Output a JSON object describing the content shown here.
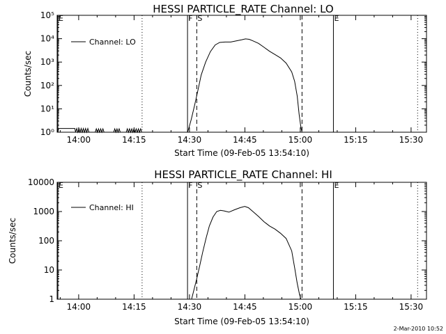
{
  "footer": {
    "timestamp": "2-Mar-2010 10:52"
  },
  "chart_data": [
    {
      "type": "line",
      "title": "HESSI PARTICLE_RATE Channel: LO",
      "xlabel": "Start Time (09-Feb-05 13:54:10)",
      "ylabel": "Counts/sec",
      "x_unit": "minutes since 13:54:10",
      "xlim": [
        0,
        100
      ],
      "ylim": [
        1,
        100000
      ],
      "yscale": "log",
      "x_ticks": [
        {
          "x": 5.83,
          "label": "14:00"
        },
        {
          "x": 20.83,
          "label": "14:15"
        },
        {
          "x": 35.83,
          "label": "14:30"
        },
        {
          "x": 50.83,
          "label": "14:45"
        },
        {
          "x": 65.83,
          "label": "15:00"
        },
        {
          "x": 80.83,
          "label": "15:15"
        },
        {
          "x": 95.83,
          "label": "15:30"
        }
      ],
      "y_ticks": [
        {
          "y": 1,
          "label": "10⁰"
        },
        {
          "y": 10,
          "label": "10¹"
        },
        {
          "y": 100,
          "label": "10²"
        },
        {
          "y": 1000,
          "label": "10³"
        },
        {
          "y": 10000,
          "label": "10⁴"
        },
        {
          "y": 100000,
          "label": "10⁵"
        }
      ],
      "legend": {
        "label": "Channel: LO",
        "position": "top-left"
      },
      "markers": [
        {
          "x": 0.2,
          "style": "solid",
          "label": "E"
        },
        {
          "x": 23.0,
          "style": "dotted",
          "label": ""
        },
        {
          "x": 35.3,
          "style": "solid",
          "label": "F"
        },
        {
          "x": 37.8,
          "style": "dashed",
          "label": "S"
        },
        {
          "x": 66.3,
          "style": "dashed",
          "label": ""
        },
        {
          "x": 74.8,
          "style": "solid",
          "label": "E"
        },
        {
          "x": 97.6,
          "style": "dotted",
          "label": ""
        }
      ],
      "series": [
        {
          "name": "Channel: LO",
          "x": [
            0,
            0.2,
            0.4,
            4.8,
            5.0,
            5.3,
            5.6,
            5.9,
            6.2,
            6.5,
            6.8,
            7.1,
            7.4,
            7.7,
            8.0,
            8.3,
            8.6,
            10.3,
            10.6,
            10.9,
            11.2,
            11.5,
            11.8,
            12.1,
            12.4,
            12.7,
            15.3,
            15.6,
            15.9,
            16.2,
            16.5,
            16.8,
            17.1,
            17.4,
            18.7,
            19.0,
            19.3,
            19.6,
            19.9,
            20.2,
            20.5,
            20.8,
            21.1,
            21.4,
            21.7,
            22.0,
            22.3,
            22.6,
            22.9,
            35.3,
            35.6,
            36.3,
            37.2,
            38.1,
            39.0,
            40.2,
            41.5,
            42.8,
            44.0,
            45.5,
            47.0,
            48.5,
            50.0,
            51.0,
            52.0,
            53.0,
            54.5,
            56.0,
            57.5,
            59.0,
            60.5,
            62.0,
            63.5,
            64.3,
            65.0,
            65.5,
            66.0,
            66.3,
            100
          ],
          "y": [
            1,
            1,
            1.45,
            1.45,
            1,
            1.45,
            1,
            1.45,
            1,
            1.45,
            1,
            1.45,
            1,
            1.45,
            1,
            1.45,
            1,
            1,
            1.4,
            1,
            1.4,
            1,
            1.4,
            1,
            1.4,
            1,
            1,
            1.4,
            1,
            1.4,
            1,
            1.4,
            1,
            1,
            1,
            1.4,
            1,
            1.4,
            1,
            1.4,
            1,
            1.4,
            1,
            1.4,
            1,
            1.4,
            1,
            1.4,
            1,
            1,
            1.4,
            3.5,
            14,
            60,
            280,
            1000,
            2800,
            5400,
            6900,
            7200,
            7200,
            8100,
            9000,
            9800,
            9400,
            8100,
            6300,
            4300,
            2900,
            2100,
            1500,
            900,
            380,
            150,
            35,
            6,
            1.6,
            1,
            1
          ]
        }
      ]
    },
    {
      "type": "line",
      "title": "HESSI PARTICLE_RATE Channel: HI",
      "xlabel": "Start Time (09-Feb-05 13:54:10)",
      "ylabel": "Counts/sec",
      "x_unit": "minutes since 13:54:10",
      "xlim": [
        0,
        100
      ],
      "ylim": [
        1,
        10000
      ],
      "yscale": "log",
      "x_ticks": [
        {
          "x": 5.83,
          "label": "14:00"
        },
        {
          "x": 20.83,
          "label": "14:15"
        },
        {
          "x": 35.83,
          "label": "14:30"
        },
        {
          "x": 50.83,
          "label": "14:45"
        },
        {
          "x": 65.83,
          "label": "15:00"
        },
        {
          "x": 80.83,
          "label": "15:15"
        },
        {
          "x": 95.83,
          "label": "15:30"
        }
      ],
      "y_ticks": [
        {
          "y": 1,
          "label": "1"
        },
        {
          "y": 10,
          "label": "10"
        },
        {
          "y": 100,
          "label": "100"
        },
        {
          "y": 1000,
          "label": "1000"
        },
        {
          "y": 10000,
          "label": "10000"
        }
      ],
      "legend": {
        "label": "Channel: HI",
        "position": "top-left"
      },
      "markers": [
        {
          "x": 0.2,
          "style": "solid",
          "label": "E"
        },
        {
          "x": 23.0,
          "style": "dotted",
          "label": ""
        },
        {
          "x": 35.3,
          "style": "solid",
          "label": "F"
        },
        {
          "x": 37.8,
          "style": "dashed",
          "label": "S"
        },
        {
          "x": 66.3,
          "style": "dashed",
          "label": ""
        },
        {
          "x": 74.8,
          "style": "solid",
          "label": "E"
        },
        {
          "x": 97.6,
          "style": "dotted",
          "label": ""
        }
      ],
      "series": [
        {
          "name": "Channel: HI",
          "x": [
            36.4,
            37.0,
            37.8,
            38.6,
            39.4,
            40.3,
            41.2,
            42.2,
            43.2,
            44.2,
            45.2,
            46.5,
            48.0,
            49.5,
            50.8,
            51.8,
            53.0,
            54.5,
            56.0,
            57.5,
            59.0,
            60.5,
            62.0,
            63.5,
            64.3,
            65.0,
            65.6,
            66.0
          ],
          "y": [
            1,
            2,
            5,
            14,
            40,
            120,
            320,
            650,
            1000,
            1100,
            1050,
            950,
            1150,
            1350,
            1500,
            1350,
            1000,
            680,
            450,
            320,
            250,
            180,
            120,
            45,
            12,
            3.5,
            1.5,
            1
          ]
        }
      ]
    }
  ]
}
